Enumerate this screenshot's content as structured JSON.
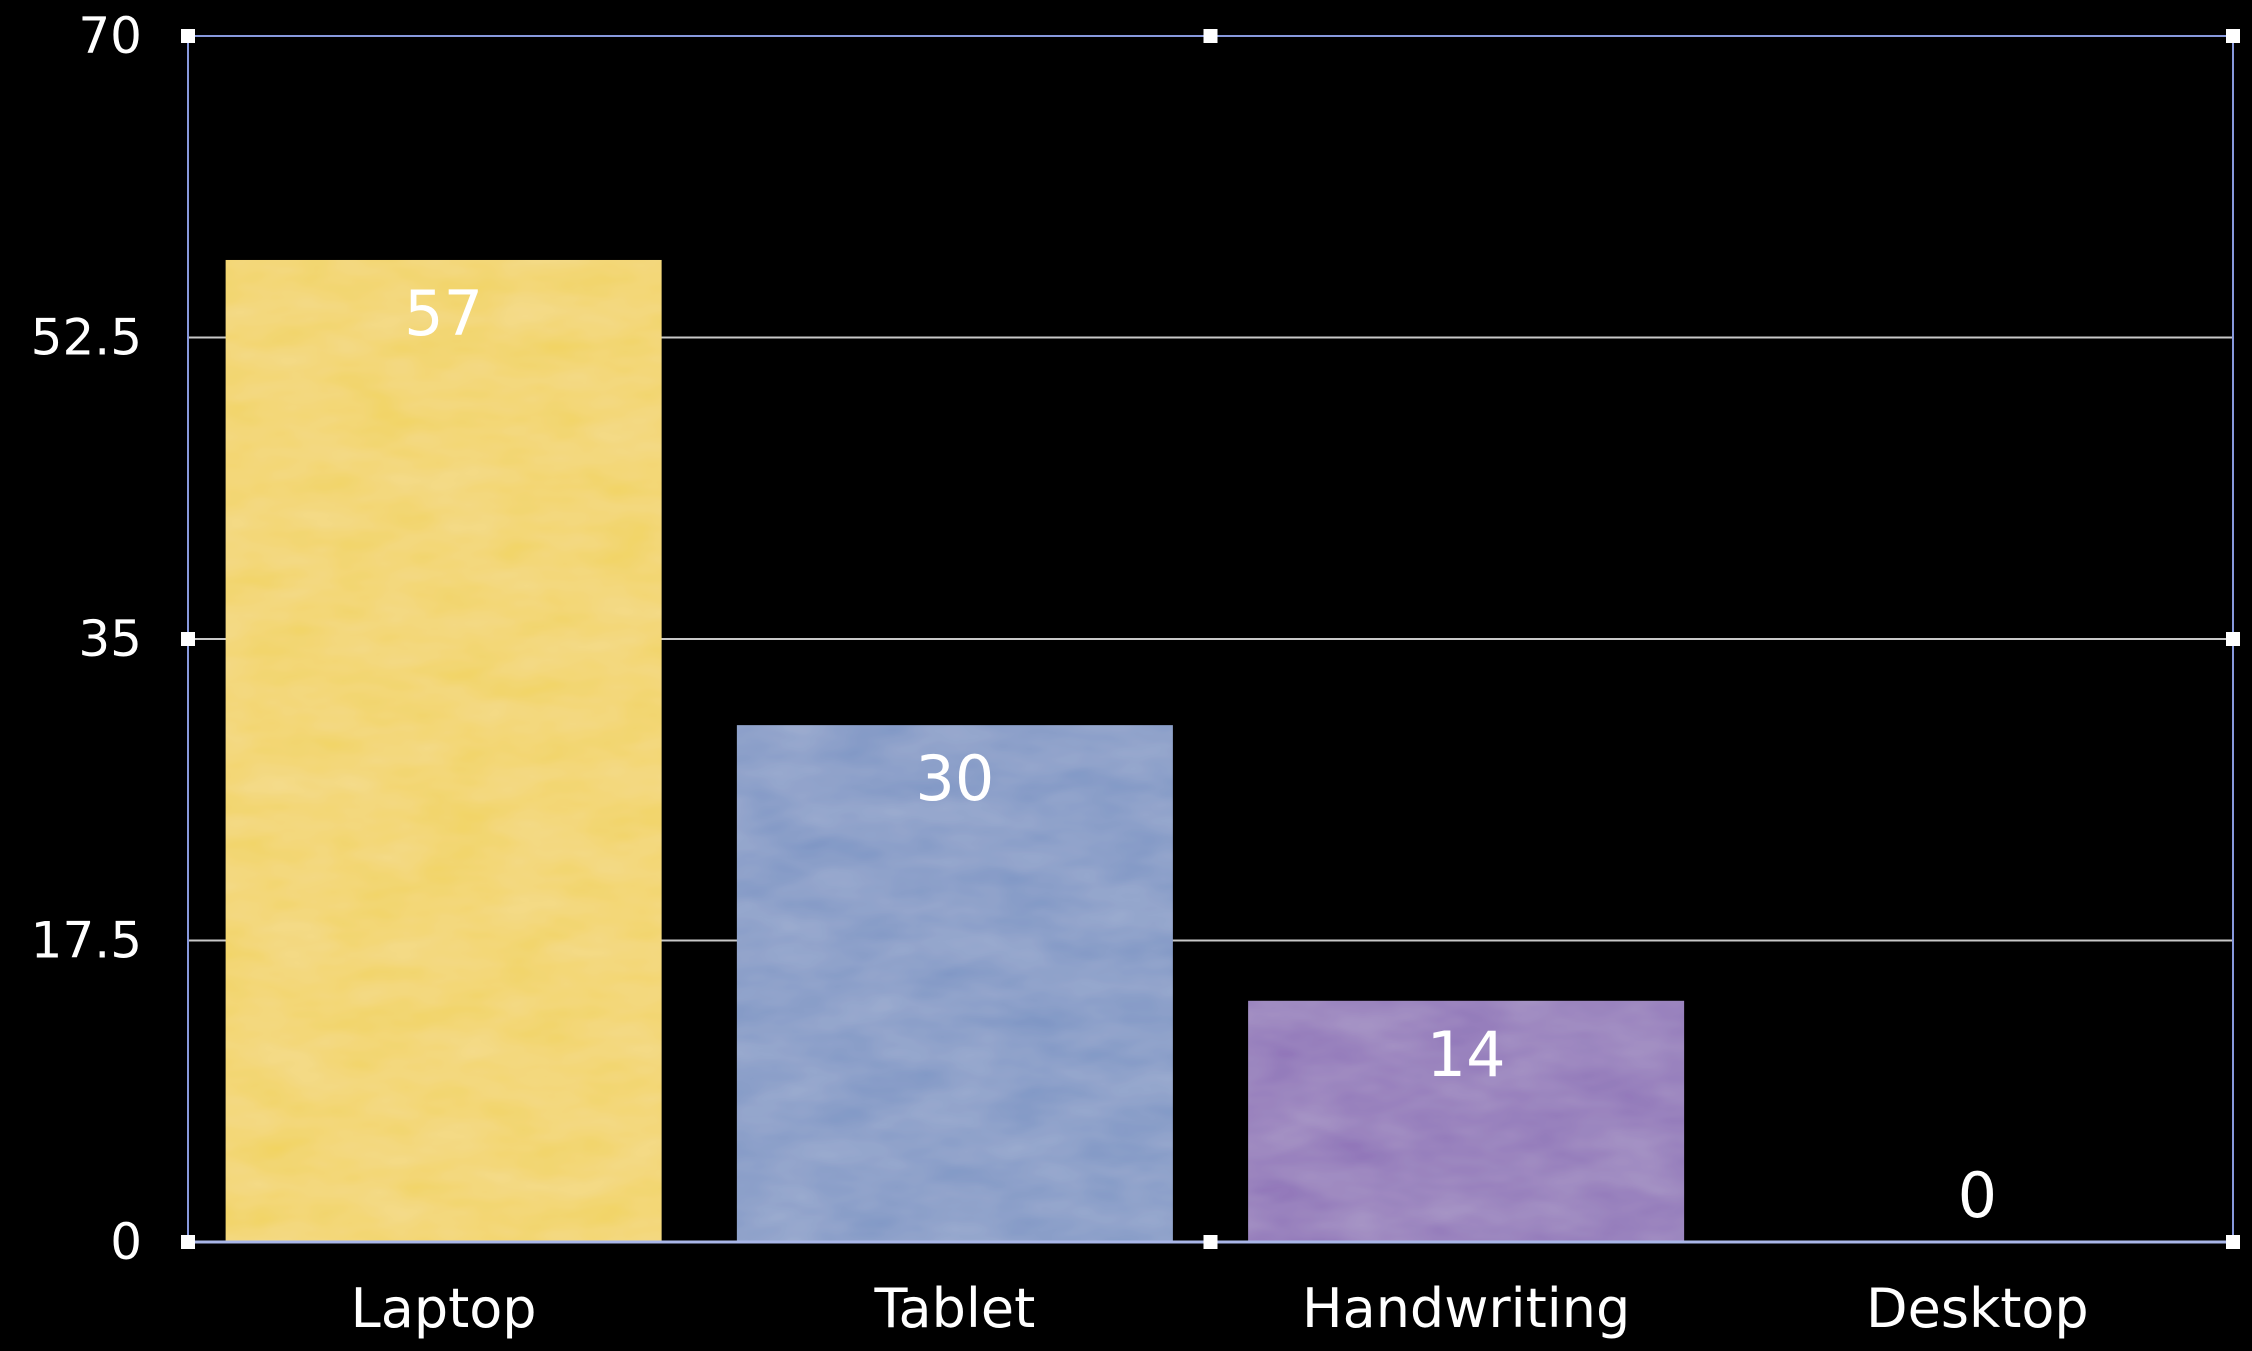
{
  "chart_data": {
    "type": "bar",
    "categories": [
      "Laptop",
      "Tablet",
      "Handwriting",
      "Desktop"
    ],
    "values": [
      57,
      30,
      14,
      0
    ],
    "y_ticks": [
      "0",
      "17.5",
      "35",
      "52.5",
      "70"
    ],
    "ylim": [
      0,
      70
    ],
    "grid": true,
    "legend": "none",
    "data_labels": true,
    "colors": {
      "bars": [
        "#f2d35e",
        "#7d94c4",
        "#8d71b7",
        "#8d71b7"
      ],
      "background": "#000000",
      "grid": "#c8c8c8",
      "frame": "#8899dd",
      "text": "#ffffff"
    }
  }
}
